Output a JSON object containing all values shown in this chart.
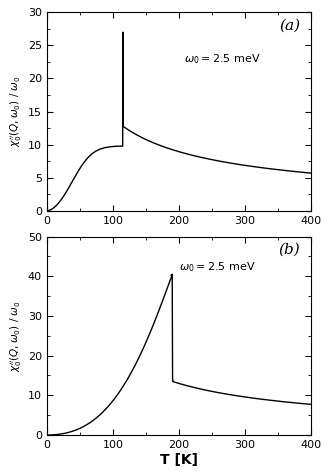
{
  "title_a": "(a)",
  "title_b": "(b)",
  "xlabel": "T [K]",
  "annotation": "$\\omega_0 = 2.5$ meV",
  "xlim": [
    0,
    400
  ],
  "ylim_a": [
    0,
    30
  ],
  "ylim_b": [
    0,
    50
  ],
  "xticks": [
    0,
    100,
    200,
    300,
    400
  ],
  "yticks_a": [
    0,
    5,
    10,
    15,
    20,
    25,
    30
  ],
  "yticks_b": [
    0,
    10,
    20,
    30,
    40,
    50
  ],
  "Tc_a": 115,
  "Tc_b": 190,
  "line_color": "#000000",
  "bg_color": "#ffffff",
  "lw": 1.0
}
